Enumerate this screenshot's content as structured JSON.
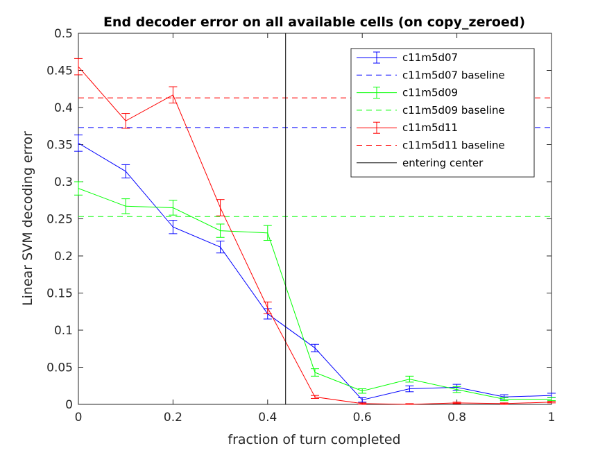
{
  "chart_data": {
    "type": "line",
    "title": "End decoder error on all available cells (on copy_zeroed)",
    "xlabel": "fraction of turn completed",
    "ylabel": "Linear SVM decoding error",
    "xlim": [
      0,
      1
    ],
    "ylim": [
      0,
      0.5
    ],
    "xticks": [
      "0",
      "0.2",
      "0.4",
      "0.6",
      "0.8",
      "1"
    ],
    "yticks": [
      "0",
      "0.05",
      "0.1",
      "0.15",
      "0.2",
      "0.25",
      "0.3",
      "0.35",
      "0.4",
      "0.45",
      "0.5"
    ],
    "grid": false,
    "legend_position": "top-right",
    "x": [
      0,
      0.1,
      0.2,
      0.3,
      0.4,
      0.5,
      0.6,
      0.7,
      0.8,
      0.9,
      1.0
    ],
    "series": [
      {
        "name": "c11m5d07",
        "color": "#0000ff",
        "values": [
          0.352,
          0.314,
          0.239,
          0.212,
          0.122,
          0.076,
          0.006,
          0.021,
          0.023,
          0.01,
          0.012
        ],
        "errors": [
          0.011,
          0.009,
          0.009,
          0.008,
          0.007,
          0.005,
          0.003,
          0.004,
          0.004,
          0.003,
          0.003
        ]
      },
      {
        "name": "c11m5d07 baseline",
        "color": "#0000ff",
        "dashed": true,
        "constant": 0.373
      },
      {
        "name": "c11m5d09",
        "color": "#00ff00",
        "values": [
          0.291,
          0.267,
          0.265,
          0.234,
          0.231,
          0.043,
          0.018,
          0.034,
          0.02,
          0.007,
          0.007
        ],
        "errors": [
          0.009,
          0.01,
          0.01,
          0.009,
          0.01,
          0.005,
          0.003,
          0.004,
          0.004,
          0.002,
          0.002
        ]
      },
      {
        "name": "c11m5d09 baseline",
        "color": "#00ff00",
        "dashed": true,
        "constant": 0.253
      },
      {
        "name": "c11m5d11",
        "color": "#ff0000",
        "values": [
          0.455,
          0.382,
          0.417,
          0.265,
          0.13,
          0.01,
          0.001,
          0.0,
          0.002,
          0.001,
          0.003
        ],
        "errors": [
          0.011,
          0.01,
          0.011,
          0.011,
          0.008,
          0.002,
          0.001,
          0.001,
          0.001,
          0.001,
          0.001
        ]
      },
      {
        "name": "c11m5d11 baseline",
        "color": "#ff0000",
        "dashed": true,
        "constant": 0.413
      },
      {
        "name": "entering center",
        "color": "#000000",
        "vertical": true,
        "x_value": 0.438
      }
    ]
  }
}
